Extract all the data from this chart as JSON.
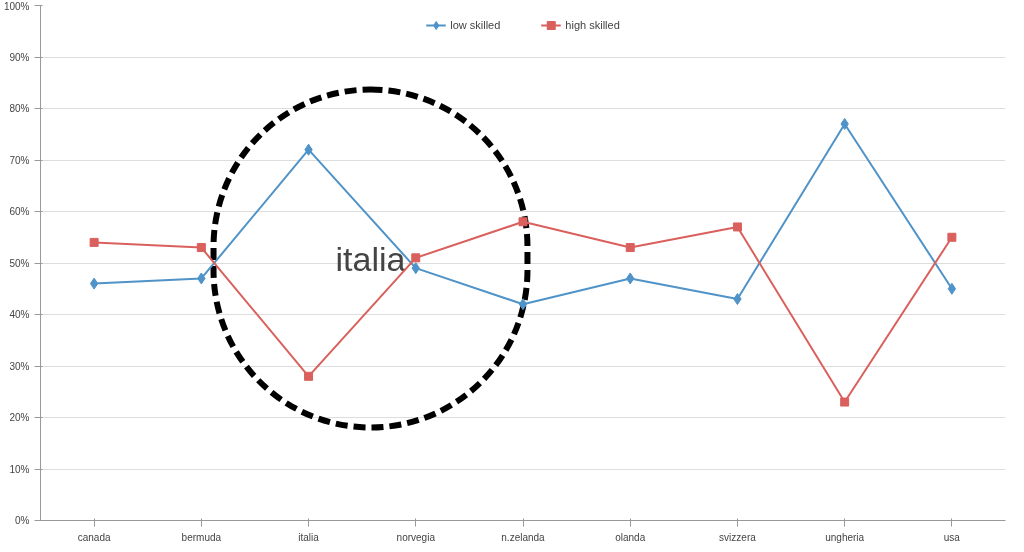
{
  "chart_data": {
    "type": "line",
    "categories": [
      "canada",
      "bermuda",
      "italia",
      "norvegia",
      "n.zelanda",
      "olanda",
      "svizzera",
      "ungheria",
      "usa"
    ],
    "series": [
      {
        "name": "low skilled",
        "color": "#4f93c8",
        "marker": "diamond",
        "values": [
          46,
          47,
          72,
          49,
          42,
          47,
          43,
          77,
          45
        ]
      },
      {
        "name": "high skilled",
        "color": "#d9605c",
        "marker": "square",
        "values": [
          54,
          53,
          28,
          51,
          58,
          53,
          57,
          23,
          55
        ]
      }
    ],
    "ylim": [
      0,
      100
    ],
    "yticks": [
      {
        "value": 0,
        "label": "0%"
      },
      {
        "value": 10,
        "label": "10%"
      },
      {
        "value": 20,
        "label": "20%"
      },
      {
        "value": 30,
        "label": "30%"
      },
      {
        "value": 40,
        "label": "40%"
      },
      {
        "value": 50,
        "label": "50%"
      },
      {
        "value": 60,
        "label": "60%"
      },
      {
        "value": 70,
        "label": "70%"
      },
      {
        "value": 80,
        "label": "80%"
      },
      {
        "value": 90,
        "label": "90%"
      },
      {
        "value": 100,
        "label": "100%"
      }
    ],
    "grid": "y",
    "legend": "top",
    "line_style": "solid",
    "annotations": [
      "italia"
    ]
  }
}
